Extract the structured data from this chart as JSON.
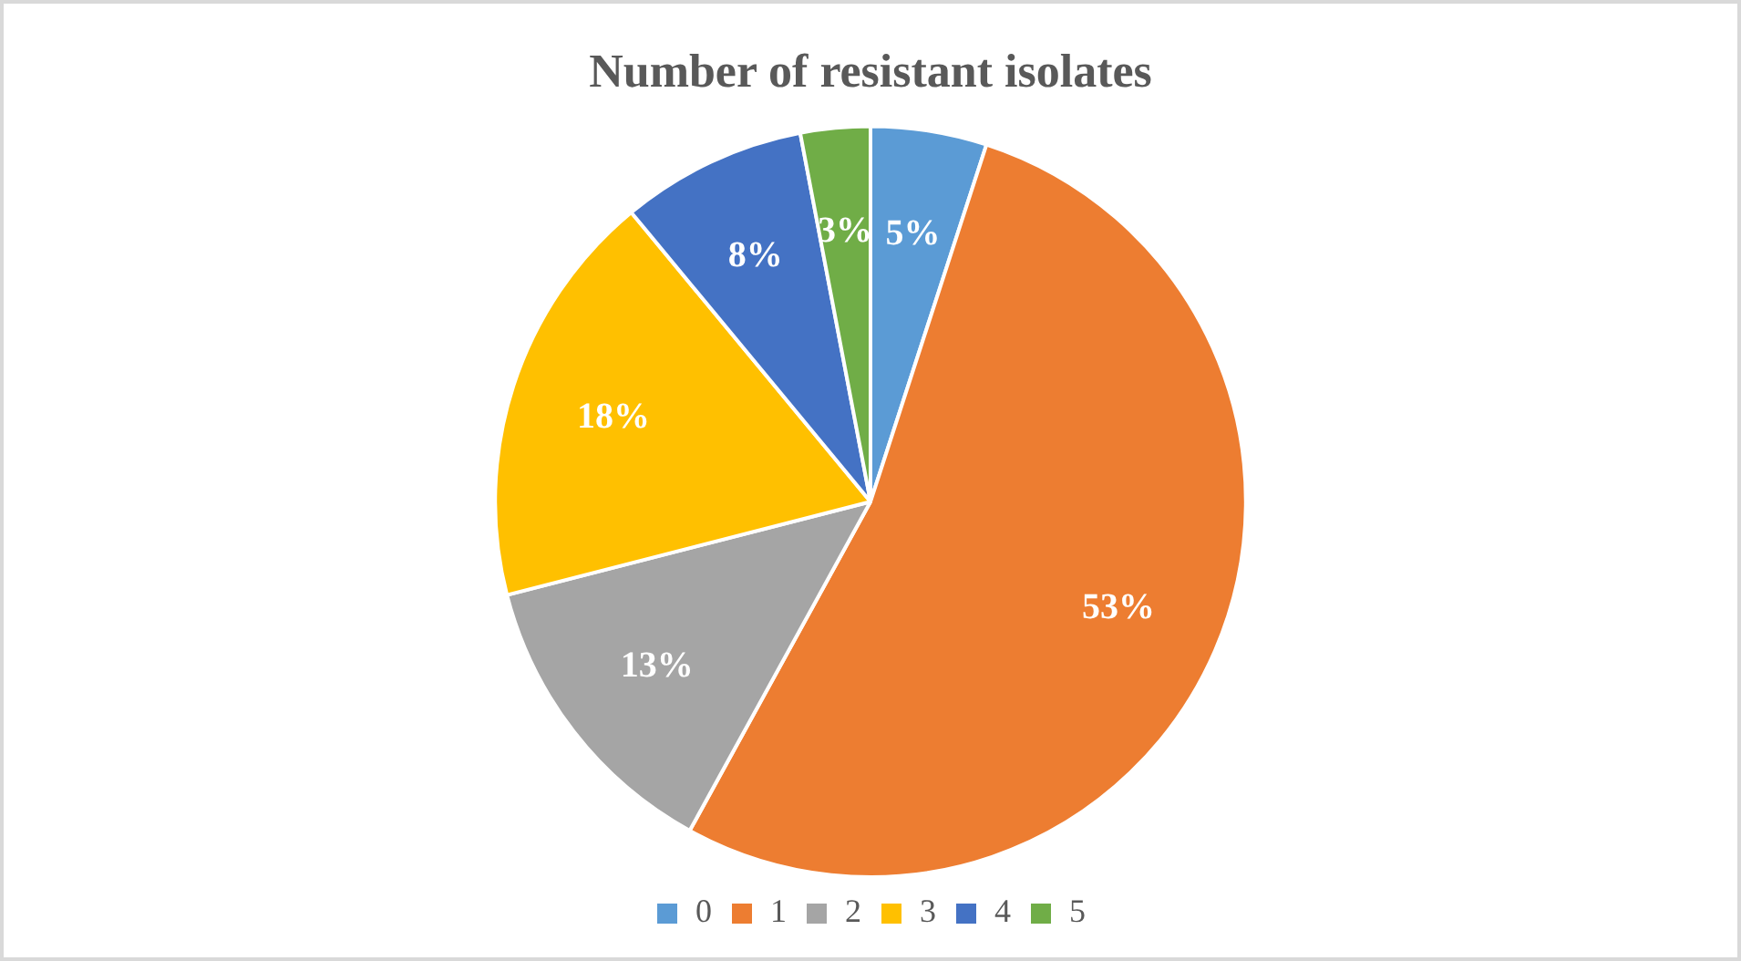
{
  "chart_data": {
    "type": "pie",
    "title": "Number of resistant isolates",
    "categories": [
      "0",
      "1",
      "2",
      "3",
      "4",
      "5"
    ],
    "values": [
      5,
      53,
      13,
      18,
      8,
      3
    ],
    "colors": [
      "#5b9bd5",
      "#ed7d31",
      "#a5a5a5",
      "#ffc000",
      "#4472c4",
      "#70ad47"
    ],
    "value_labels": [
      "5%",
      "53%",
      "13%",
      "18%",
      "8%",
      "3%"
    ],
    "legend": "bottom"
  }
}
